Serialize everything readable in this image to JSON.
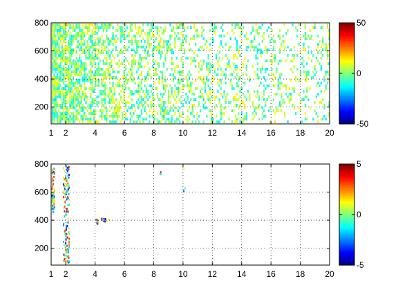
{
  "chart_data": [
    {
      "type": "heatmap",
      "title": "",
      "xlabel": "",
      "ylabel": "",
      "xlim": [
        1,
        20
      ],
      "ylim": [
        80,
        800
      ],
      "x_ticks": [
        1,
        2,
        4,
        6,
        8,
        10,
        12,
        14,
        16,
        18,
        20
      ],
      "y_ticks": [
        200,
        400,
        600,
        800
      ],
      "grid": true,
      "colormap": "jet",
      "colorbar": {
        "range": [
          -50,
          50
        ],
        "ticks": [
          -50,
          0,
          50
        ],
        "placement": "right"
      },
      "cells": "dense scattered values concentrated between -15 and 15 (green/yellow/cyan), densest at x 1-5 and thinning toward x 20"
    },
    {
      "type": "heatmap",
      "title": "",
      "xlabel": "",
      "ylabel": "",
      "xlim": [
        1,
        20
      ],
      "ylim": [
        80,
        800
      ],
      "x_ticks": [
        1,
        2,
        4,
        6,
        8,
        10,
        12,
        14,
        16,
        18,
        20
      ],
      "y_ticks": [
        200,
        400,
        600,
        800
      ],
      "grid": true,
      "colormap": "jet",
      "colorbar": {
        "range": [
          -5,
          5
        ],
        "ticks": [
          -5,
          0,
          5
        ],
        "placement": "right"
      },
      "cells": "sparse non-zero values near x 1-2.2, small cluster near x 4-5 at y 380-420, isolated points near x 8.5 and x 10"
    }
  ]
}
